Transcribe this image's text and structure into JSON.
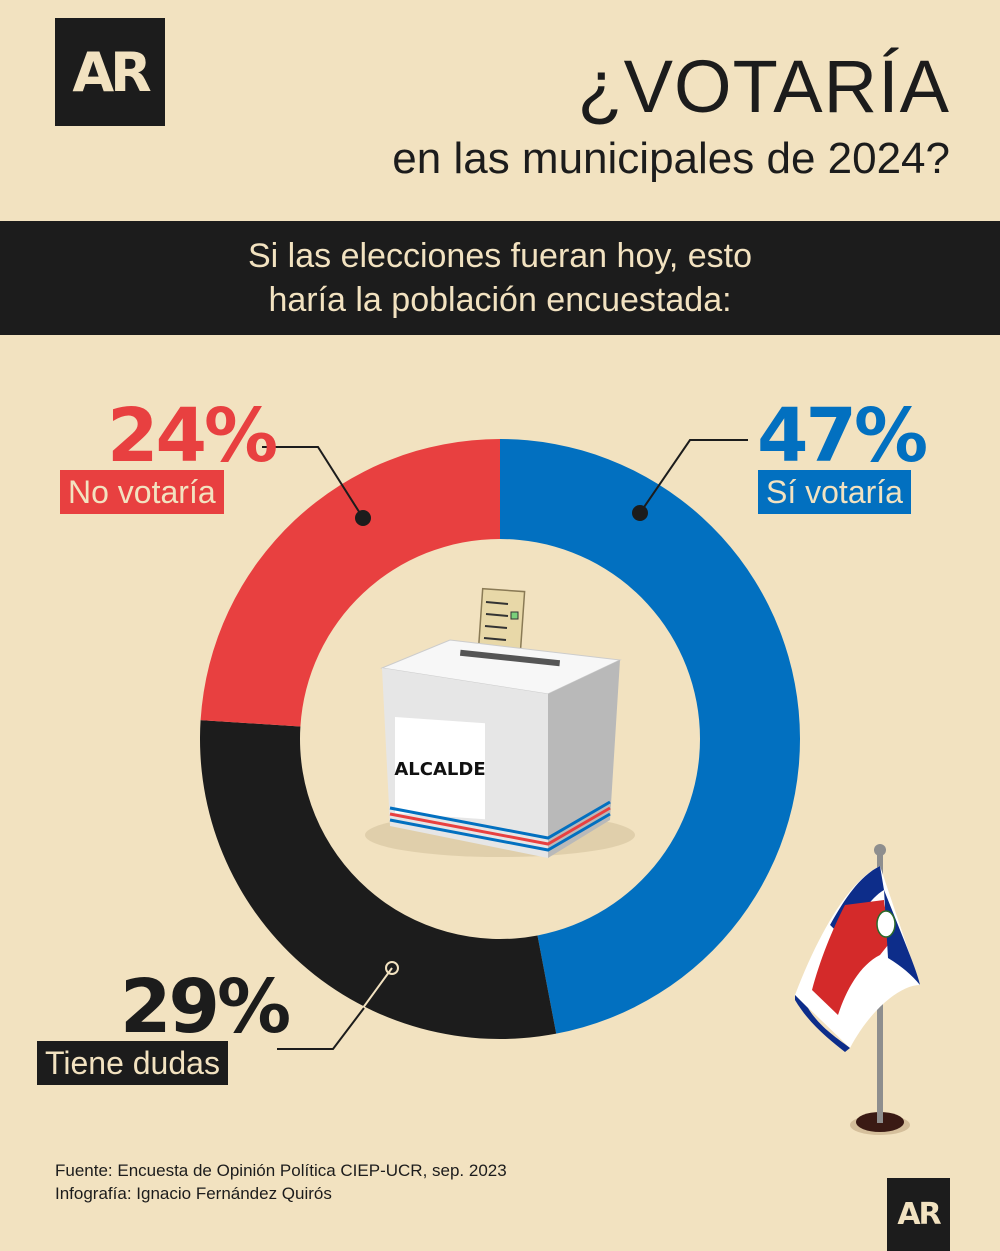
{
  "logo": {
    "text": "AR"
  },
  "header": {
    "title": "¿VOTARÍA",
    "subtitle": "en las municipales de 2024?"
  },
  "banner": {
    "line1": "Si las elecciones fueran hoy, esto",
    "line2": "haría la población encuestada:"
  },
  "ballot_box": {
    "label": "ALCALDE"
  },
  "colors": {
    "background": "#f2e2c0",
    "dark": "#1c1c1c",
    "red": "#e84040",
    "blue": "#0270c0"
  },
  "chart_data": {
    "type": "pie",
    "donut": true,
    "title": "",
    "slices": [
      {
        "label": "Sí votaría",
        "value": 47,
        "value_label": "47%",
        "color": "#0270c0"
      },
      {
        "label": "Tiene dudas",
        "value": 29,
        "value_label": "29%",
        "color": "#1c1c1c"
      },
      {
        "label": "No votaría",
        "value": 24,
        "value_label": "24%",
        "color": "#e84040"
      }
    ]
  },
  "footer": {
    "source": "Fuente: Encuesta de Opinión Política CIEP-UCR, sep. 2023",
    "credit": "Infografía: Ignacio Fernández Quirós"
  }
}
